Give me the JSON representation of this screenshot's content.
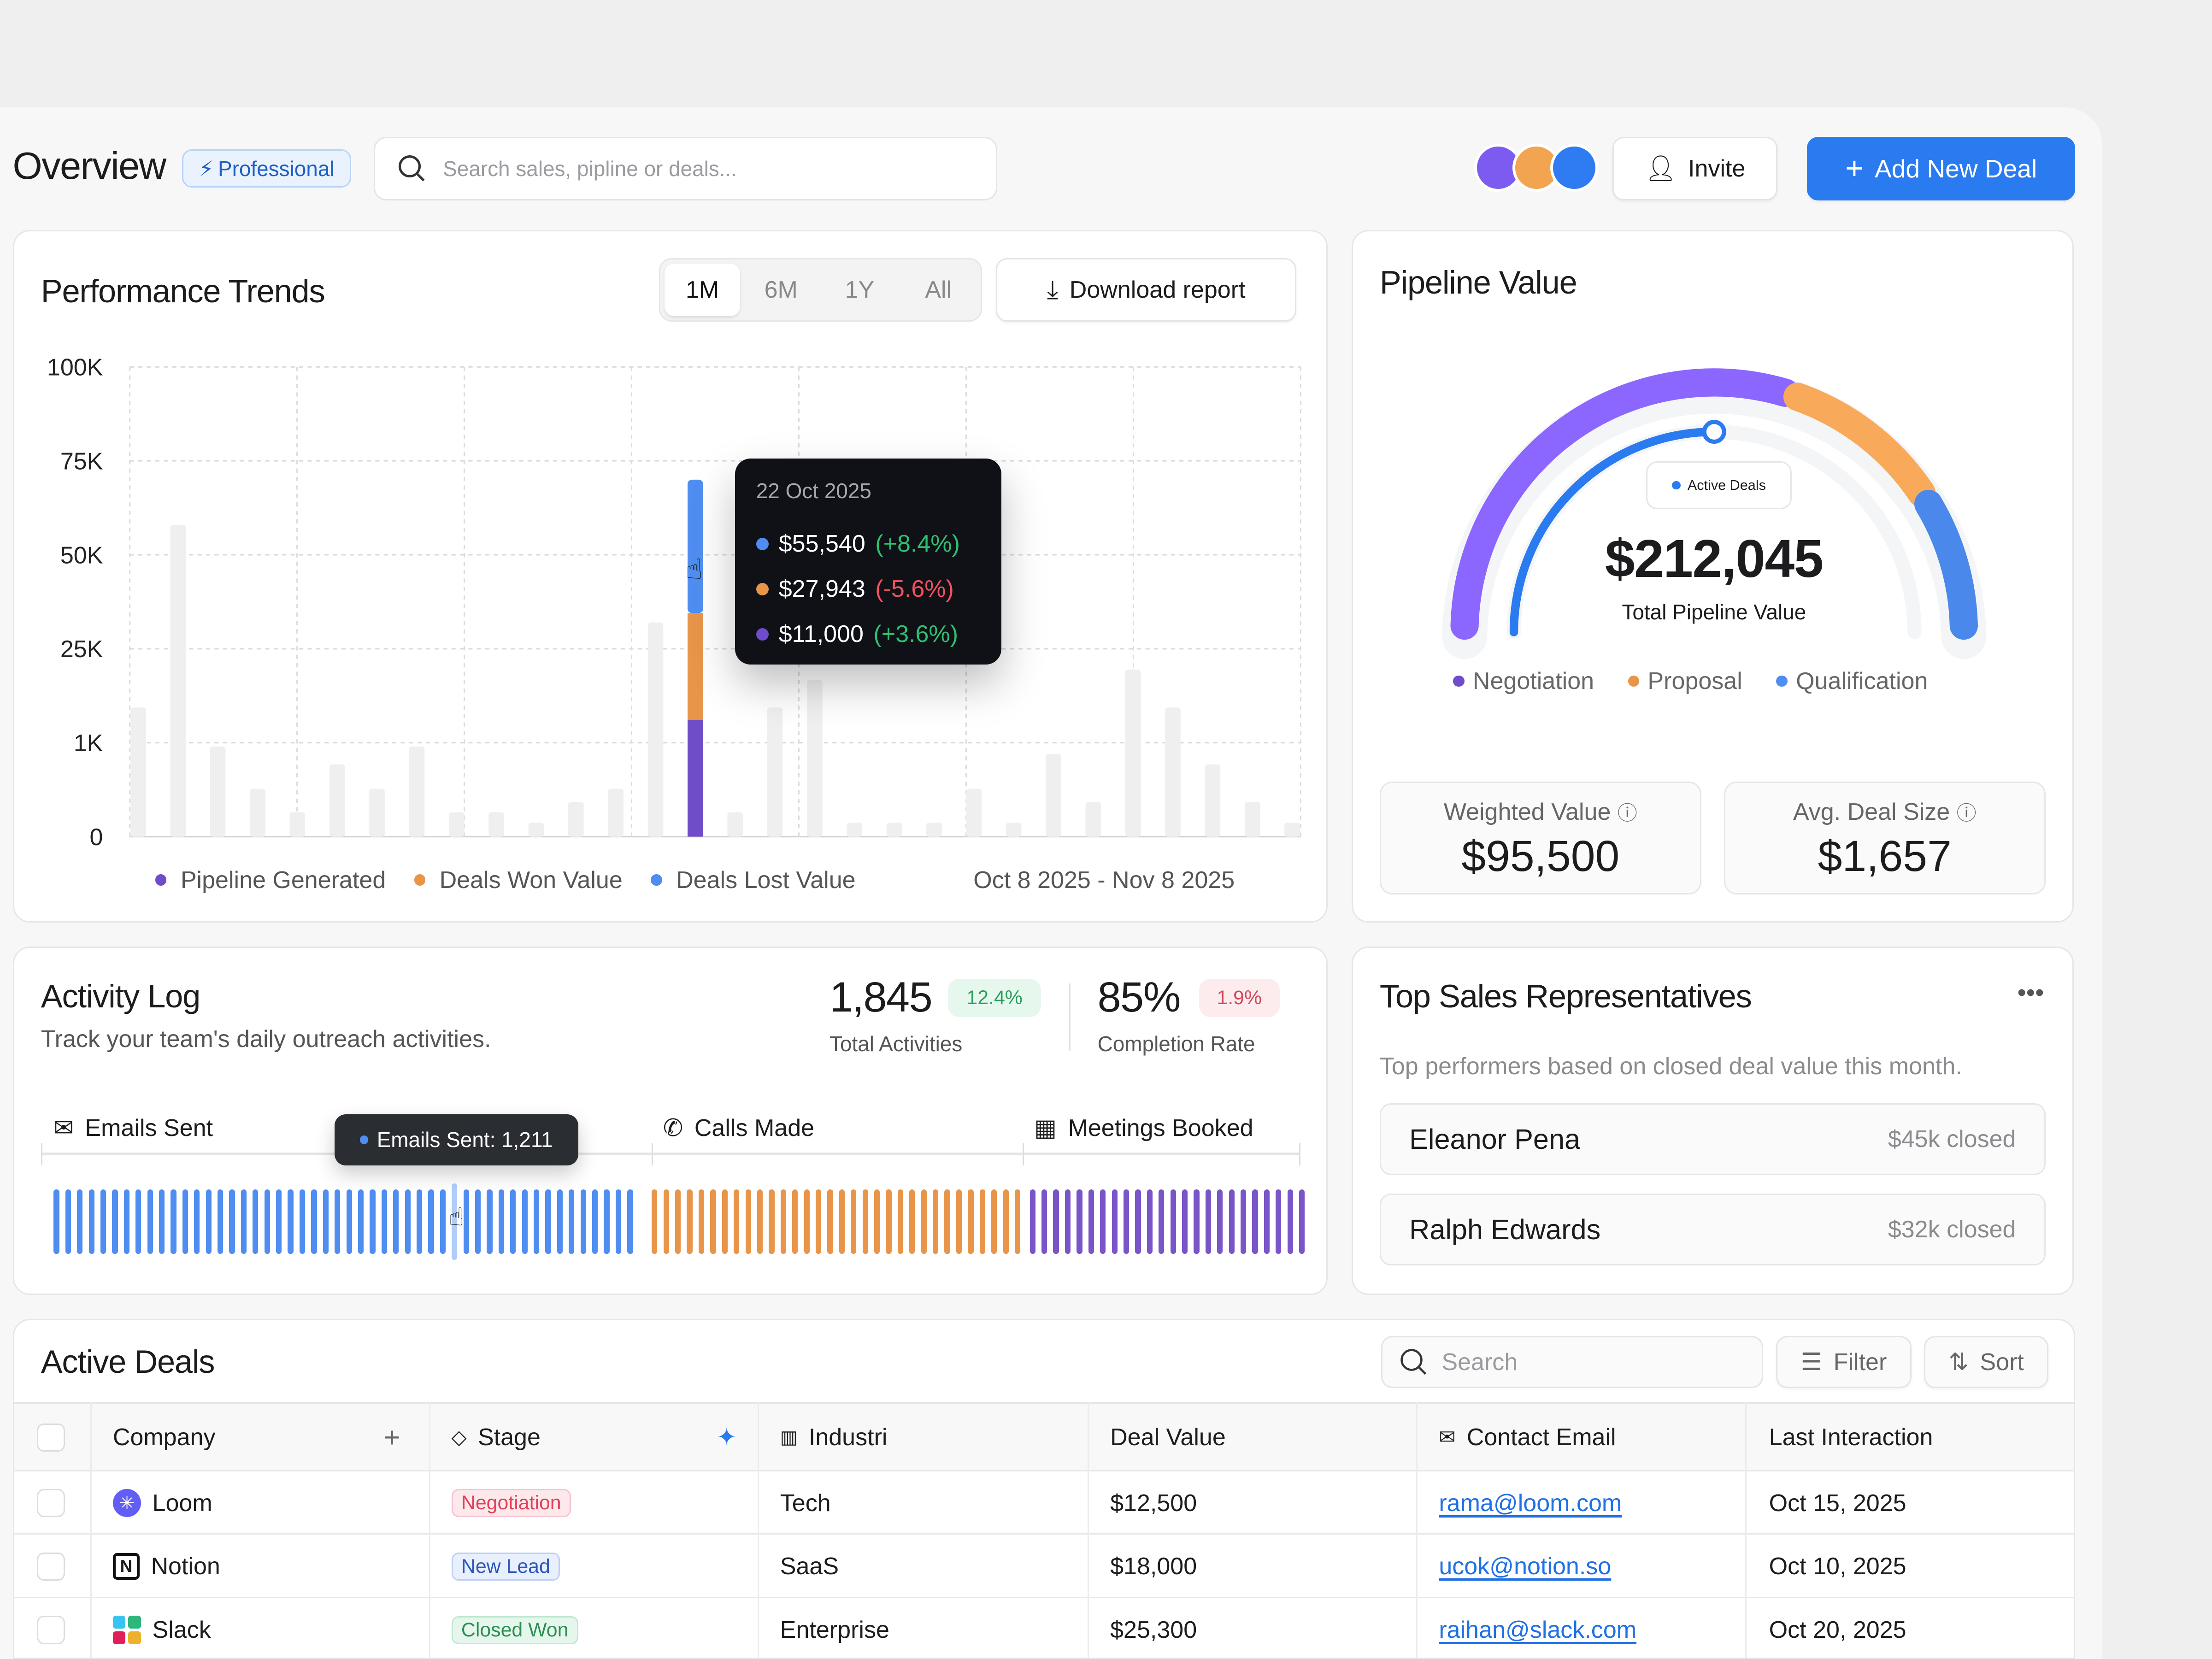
{
  "header": {
    "title": "Overview",
    "plan_badge": "Professional",
    "search_placeholder": "Search sales, pipline or deals...",
    "invite_label": "Invite",
    "add_deal_label": "Add New Deal",
    "accent": "#2b7bf0"
  },
  "performance": {
    "title": "Performance Trends",
    "ranges": [
      "1M",
      "6M",
      "1Y",
      "All"
    ],
    "active_range": "1M",
    "download_label": "Download report",
    "date_range": "Oct 8 2025 - Nov 8 2025",
    "tooltip": {
      "date": "22 Oct 2025",
      "items": [
        {
          "value": "$55,540",
          "change": "(+8.4%)",
          "color": "#4f8ef0",
          "trend": "up"
        },
        {
          "value": "$27,943",
          "change": "(-5.6%)",
          "color": "#e8954a",
          "trend": "down"
        },
        {
          "value": "$11,000",
          "change": "(+3.6%)",
          "color": "#6f4cc8",
          "trend": "up"
        }
      ]
    }
  },
  "chart_data": {
    "type": "bar",
    "title": "Performance Trends",
    "xlabel": "",
    "ylabel": "",
    "y_ticks": [
      "0",
      "1K",
      "25K",
      "50K",
      "75K",
      "100K"
    ],
    "y_tick_values": [
      0,
      1000,
      25000,
      50000,
      75000,
      100000
    ],
    "grid": true,
    "legend": [
      {
        "name": "Pipeline Generated",
        "color": "#6f4cc8"
      },
      {
        "name": "Deals Won Value",
        "color": "#e8954a"
      },
      {
        "name": "Deals Lost Value",
        "color": "#4f8ef0"
      }
    ],
    "legend_position": "bottom",
    "values": [
      10000,
      58000,
      960,
      510,
      260,
      770,
      510,
      960,
      260,
      260,
      150,
      370,
      510,
      32000,
      70000,
      260,
      10000,
      17000,
      150,
      150,
      150,
      510,
      150,
      880,
      370,
      19700,
      10000,
      770,
      370,
      150
    ],
    "highlight_index": 14,
    "highlight_stack": [
      {
        "series": "Pipeline Generated",
        "top": 6800
      },
      {
        "series": "Deals Won Value",
        "top": 34500
      },
      {
        "series": "Deals Lost Value",
        "top": 70000
      }
    ]
  },
  "pipeline": {
    "title": "Pipeline Value",
    "total": "$212,045",
    "total_label": "Total Pipeline Value",
    "active_label": "Active Deals",
    "active_progress": 0.5,
    "segments": [
      {
        "name": "Negotiation",
        "share": 0.6,
        "color": "#8b66ff",
        "legend_color": "#6f4cc8"
      },
      {
        "name": "Proposal",
        "share": 0.22,
        "color": "#f9a95a",
        "legend_color": "#e8954a"
      },
      {
        "name": "Qualification",
        "share": 0.18,
        "color": "#4a88ec",
        "legend_color": "#4f8ef0"
      }
    ],
    "stats": [
      {
        "label": "Weighted Value",
        "value": "$95,500"
      },
      {
        "label": "Avg. Deal Size",
        "value": "$1,657"
      }
    ]
  },
  "activity": {
    "title": "Activity Log",
    "subtitle": "Track your team's daily outreach activities.",
    "total": "1,845",
    "total_change": "12.4%",
    "total_label": "Total Activities",
    "rate": "85%",
    "rate_change": "1.9%",
    "rate_label": "Completion Rate",
    "categories": [
      {
        "name": "Emails Sent",
        "color": "#4f8ef0"
      },
      {
        "name": "Calls Made",
        "color": "#e8954a"
      },
      {
        "name": "Meetings Booked",
        "color": "#7a55c8"
      }
    ],
    "tooltip": "Emails Sent: 1,211"
  },
  "reps": {
    "title": "Top Sales Representatives",
    "subtitle": "Top performers based on closed deal value this month.",
    "items": [
      {
        "name": "Eleanor Pena",
        "value": "$45k closed"
      },
      {
        "name": "Ralph Edwards",
        "value": "$32k closed"
      }
    ]
  },
  "deals": {
    "title": "Active Deals",
    "search_placeholder": "Search",
    "filter_label": "Filter",
    "sort_label": "Sort",
    "columns": [
      "Company",
      "Stage",
      "Industri",
      "Deal Value",
      "Contact Email",
      "Last Interaction"
    ],
    "rows": [
      {
        "company": "Loom",
        "stage": "Negotiation",
        "industry": "Tech",
        "value": "$12,500",
        "email": "rama@loom.com",
        "last": "Oct 15, 2025"
      },
      {
        "company": "Notion",
        "stage": "New Lead",
        "industry": "SaaS",
        "value": "$18,000",
        "email": "ucok@notion.so",
        "last": "Oct 10, 2025"
      },
      {
        "company": "Slack",
        "stage": "Closed Won",
        "industry": "Enterprise",
        "value": "$25,300",
        "email": "raihan@slack.com",
        "last": "Oct 20, 2025"
      }
    ]
  }
}
